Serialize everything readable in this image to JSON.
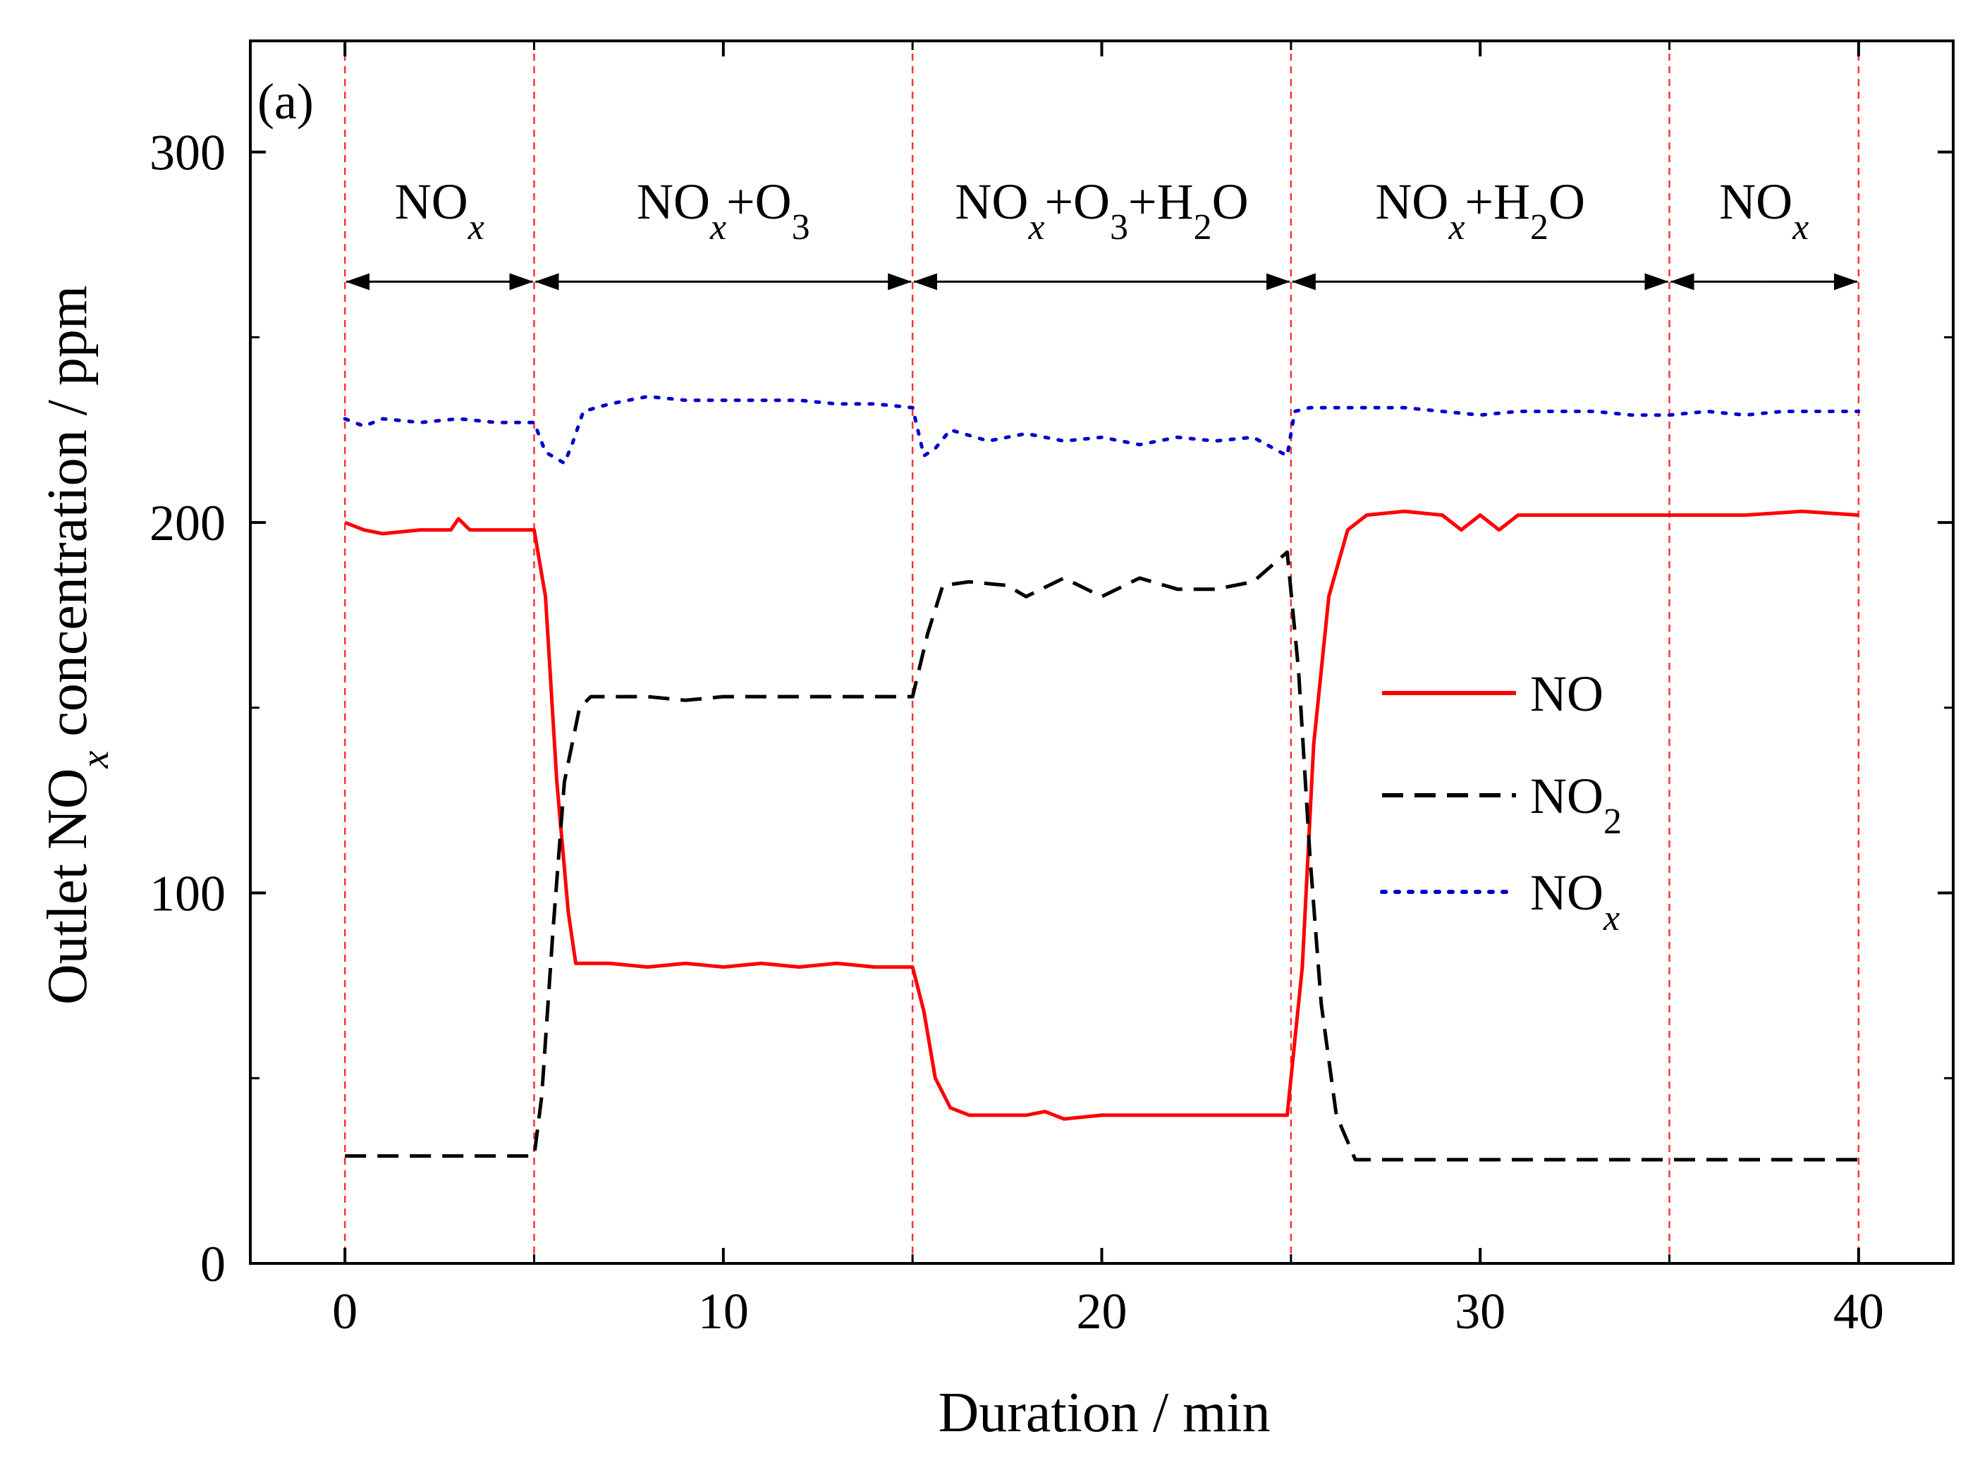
{
  "chart_data": {
    "type": "line",
    "panel_label": "(a)",
    "xlabel": "Duration / min",
    "ylabel": {
      "main": "Outlet NO",
      "sub": "x",
      "tail": " concentration / ppm"
    },
    "xlim": [
      -2.5,
      42.5
    ],
    "ylim": [
      0,
      330
    ],
    "x_ticks": [
      0,
      10,
      20,
      30,
      40
    ],
    "x_tick_labels": [
      "0",
      "10",
      "20",
      "30",
      "40"
    ],
    "y_ticks": [
      0,
      100,
      200,
      300
    ],
    "y_tick_labels": [
      "0",
      "100",
      "200",
      "300"
    ],
    "phase_boundaries": [
      0,
      5,
      15,
      25,
      35,
      40
    ],
    "phases": [
      {
        "start": 0,
        "end": 5,
        "parts": [
          {
            "t": "NO"
          },
          {
            "t": "x",
            "s": "sub",
            "i": true
          }
        ]
      },
      {
        "start": 5,
        "end": 15,
        "parts": [
          {
            "t": "NO"
          },
          {
            "t": "x",
            "s": "sub",
            "i": true
          },
          {
            "t": "+O"
          },
          {
            "t": "3",
            "s": "sub"
          }
        ]
      },
      {
        "start": 15,
        "end": 25,
        "parts": [
          {
            "t": "NO"
          },
          {
            "t": "x",
            "s": "sub",
            "i": true
          },
          {
            "t": "+O"
          },
          {
            "t": "3",
            "s": "sub"
          },
          {
            "t": "+H"
          },
          {
            "t": "2",
            "s": "sub"
          },
          {
            "t": "O"
          }
        ]
      },
      {
        "start": 25,
        "end": 35,
        "parts": [
          {
            "t": "NO"
          },
          {
            "t": "x",
            "s": "sub",
            "i": true
          },
          {
            "t": "+H"
          },
          {
            "t": "2",
            "s": "sub"
          },
          {
            "t": "O"
          }
        ]
      },
      {
        "start": 35,
        "end": 40,
        "parts": [
          {
            "t": "NO"
          },
          {
            "t": "x",
            "s": "sub",
            "i": true
          }
        ]
      }
    ],
    "series": [
      {
        "name": "NO",
        "label_parts": [
          {
            "t": "NO"
          }
        ],
        "color": "#ff0000",
        "style": "solid",
        "points": [
          [
            0,
            200
          ],
          [
            0.5,
            198
          ],
          [
            1,
            197
          ],
          [
            2,
            198
          ],
          [
            2.8,
            198
          ],
          [
            3,
            201
          ],
          [
            3.3,
            198
          ],
          [
            5,
            198
          ],
          [
            5.3,
            180
          ],
          [
            5.6,
            130
          ],
          [
            5.9,
            95
          ],
          [
            6.1,
            81
          ],
          [
            7,
            81
          ],
          [
            8,
            80
          ],
          [
            9,
            81
          ],
          [
            10,
            80
          ],
          [
            11,
            81
          ],
          [
            12,
            80
          ],
          [
            13,
            81
          ],
          [
            14,
            80
          ],
          [
            15,
            80
          ],
          [
            15.3,
            68
          ],
          [
            15.6,
            50
          ],
          [
            16,
            42
          ],
          [
            16.5,
            40
          ],
          [
            18,
            40
          ],
          [
            18.5,
            41
          ],
          [
            19,
            39
          ],
          [
            20,
            40
          ],
          [
            22,
            40
          ],
          [
            24,
            40
          ],
          [
            24.9,
            40
          ],
          [
            25.3,
            80
          ],
          [
            25.6,
            140
          ],
          [
            26,
            180
          ],
          [
            26.5,
            198
          ],
          [
            27,
            202
          ],
          [
            28,
            203
          ],
          [
            29,
            202
          ],
          [
            29.5,
            198
          ],
          [
            30,
            202
          ],
          [
            30.5,
            198
          ],
          [
            31,
            202
          ],
          [
            33,
            202
          ],
          [
            35,
            202
          ],
          [
            37,
            202
          ],
          [
            38.5,
            203
          ],
          [
            40,
            202
          ]
        ]
      },
      {
        "name": "NO2",
        "label_parts": [
          {
            "t": "NO"
          },
          {
            "t": "2",
            "s": "sub"
          }
        ],
        "color": "#000000",
        "style": "dashed",
        "points": [
          [
            0,
            29
          ],
          [
            1,
            29
          ],
          [
            2,
            29
          ],
          [
            3,
            29
          ],
          [
            4,
            29
          ],
          [
            5,
            29
          ],
          [
            5.2,
            45
          ],
          [
            5.5,
            90
          ],
          [
            5.8,
            130
          ],
          [
            6.2,
            150
          ],
          [
            6.5,
            153
          ],
          [
            8,
            153
          ],
          [
            9,
            152
          ],
          [
            10,
            153
          ],
          [
            12,
            153
          ],
          [
            14,
            153
          ],
          [
            15,
            153
          ],
          [
            15.4,
            170
          ],
          [
            15.8,
            183
          ],
          [
            16.5,
            184
          ],
          [
            17.5,
            183
          ],
          [
            18,
            180
          ],
          [
            19,
            185
          ],
          [
            20,
            180
          ],
          [
            21,
            185
          ],
          [
            22,
            182
          ],
          [
            23,
            182
          ],
          [
            24,
            184
          ],
          [
            24.9,
            192
          ],
          [
            25.2,
            160
          ],
          [
            25.5,
            110
          ],
          [
            25.8,
            70
          ],
          [
            26.2,
            40
          ],
          [
            26.7,
            28
          ],
          [
            28,
            28
          ],
          [
            30,
            28
          ],
          [
            32,
            28
          ],
          [
            34,
            28
          ],
          [
            36,
            28
          ],
          [
            38,
            28
          ],
          [
            40,
            28
          ]
        ]
      },
      {
        "name": "NOx",
        "label_parts": [
          {
            "t": "NO"
          },
          {
            "t": "x",
            "s": "sub",
            "i": true
          }
        ],
        "color": "#0000cc",
        "style": "dotted",
        "points": [
          [
            0,
            228
          ],
          [
            0.5,
            226
          ],
          [
            1,
            228
          ],
          [
            2,
            227
          ],
          [
            3,
            228
          ],
          [
            4,
            227
          ],
          [
            5,
            227
          ],
          [
            5.3,
            219
          ],
          [
            5.8,
            216
          ],
          [
            6,
            221
          ],
          [
            6.3,
            230
          ],
          [
            7,
            232
          ],
          [
            8,
            234
          ],
          [
            9,
            233
          ],
          [
            10,
            233
          ],
          [
            11,
            233
          ],
          [
            12,
            233
          ],
          [
            13,
            232
          ],
          [
            14,
            232
          ],
          [
            15,
            231
          ],
          [
            15.3,
            218
          ],
          [
            15.6,
            220
          ],
          [
            16,
            225
          ],
          [
            17,
            222
          ],
          [
            18,
            224
          ],
          [
            19,
            222
          ],
          [
            20,
            223
          ],
          [
            21,
            221
          ],
          [
            22,
            223
          ],
          [
            23,
            222
          ],
          [
            24,
            223
          ],
          [
            24.9,
            218
          ],
          [
            25.1,
            230
          ],
          [
            25.5,
            231
          ],
          [
            26,
            231
          ],
          [
            27,
            231
          ],
          [
            28,
            231
          ],
          [
            29,
            230
          ],
          [
            30,
            229
          ],
          [
            31,
            230
          ],
          [
            32,
            230
          ],
          [
            33,
            230
          ],
          [
            34,
            229
          ],
          [
            35,
            229
          ],
          [
            36,
            230
          ],
          [
            37,
            229
          ],
          [
            38,
            230
          ],
          [
            39,
            230
          ],
          [
            40,
            230
          ]
        ]
      }
    ]
  }
}
